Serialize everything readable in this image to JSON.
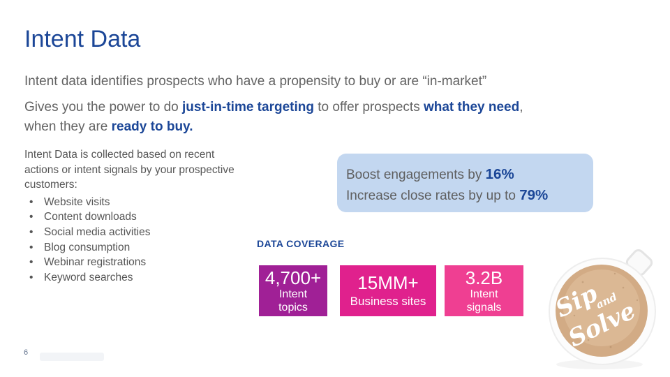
{
  "title": "Intent Data",
  "paragraph1": "Intent data identifies prospects who have a propensity to buy or are “in-market”",
  "paragraph2": {
    "lines": [
      [
        {
          "t": "Gives you the power to do ",
          "e": false
        },
        {
          "t": "just-in-time targeting",
          "e": true
        },
        {
          "t": " to offer prospects ",
          "e": false
        },
        {
          "t": "what they need",
          "e": true
        },
        {
          "t": ",",
          "e": false
        }
      ],
      [
        {
          "t": "when they are ",
          "e": false
        },
        {
          "t": "ready to buy.",
          "e": true
        }
      ]
    ]
  },
  "left_panel": {
    "heading_lines": [
      "Intent Data is collected based on recent",
      "actions or intent signals by your prospective",
      "customers:"
    ],
    "bullets": [
      "Website visits",
      "Content downloads",
      "Social media activities",
      "Blog consumption",
      "Webinar registrations",
      "Keyword searches"
    ]
  },
  "stats_callout": {
    "lines": [
      {
        "prefix": "Boost engagements by ",
        "value": "16%"
      },
      {
        "prefix": "Increase close rates by up to ",
        "value": "79%"
      }
    ]
  },
  "data_coverage": {
    "label": "DATA COVERAGE",
    "boxes": [
      {
        "value": "4,700+",
        "labels": [
          "Intent",
          "topics"
        ],
        "color": "#A02096"
      },
      {
        "value": "15MM+",
        "labels": [
          "Business sites",
          ""
        ],
        "color": "#E0218D"
      },
      {
        "value": "3.2B",
        "labels": [
          "Intent",
          "signals"
        ],
        "color": "#EF3F92"
      }
    ]
  },
  "coffee_badge": {
    "words": [
      "Sip",
      "and",
      "Solve"
    ]
  },
  "page_number": "6",
  "colors": {
    "accent_blue": "#1B4697",
    "body_gray": "#636363",
    "callout_bg": "#C3D7F0"
  }
}
